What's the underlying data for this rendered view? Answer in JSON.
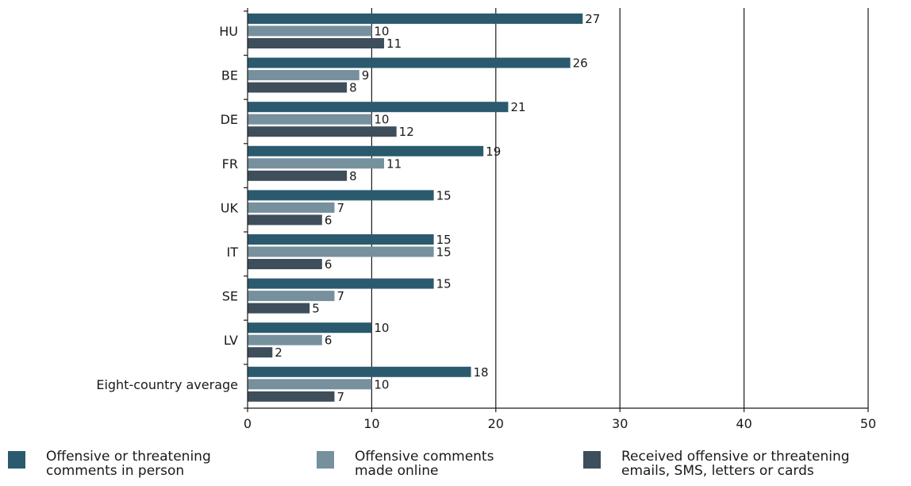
{
  "chart_data": {
    "type": "bar",
    "orientation": "horizontal",
    "title": "",
    "xlabel": "",
    "ylabel": "",
    "xlim": [
      0,
      50
    ],
    "x_ticks": [
      0,
      10,
      20,
      30,
      40,
      50
    ],
    "categories": [
      "HU",
      "BE",
      "DE",
      "FR",
      "UK",
      "IT",
      "SE",
      "LV",
      "Eight-country average"
    ],
    "series": [
      {
        "name": "Offensive or threatening\ncomments in person",
        "color": "#2b5a6e",
        "values": [
          27,
          26,
          21,
          19,
          15,
          15,
          15,
          10,
          18
        ]
      },
      {
        "name": "Offensive comments\nmade online",
        "color": "#77909d",
        "values": [
          10,
          9,
          10,
          11,
          7,
          15,
          7,
          6,
          10
        ]
      },
      {
        "name": "Received offensive or threatening\nemails, SMS, letters or cards",
        "color": "#3e4e5b",
        "values": [
          11,
          8,
          12,
          8,
          6,
          6,
          5,
          2,
          7
        ]
      }
    ],
    "grid": "vertical",
    "data_labels": true,
    "legend_position": "bottom"
  }
}
